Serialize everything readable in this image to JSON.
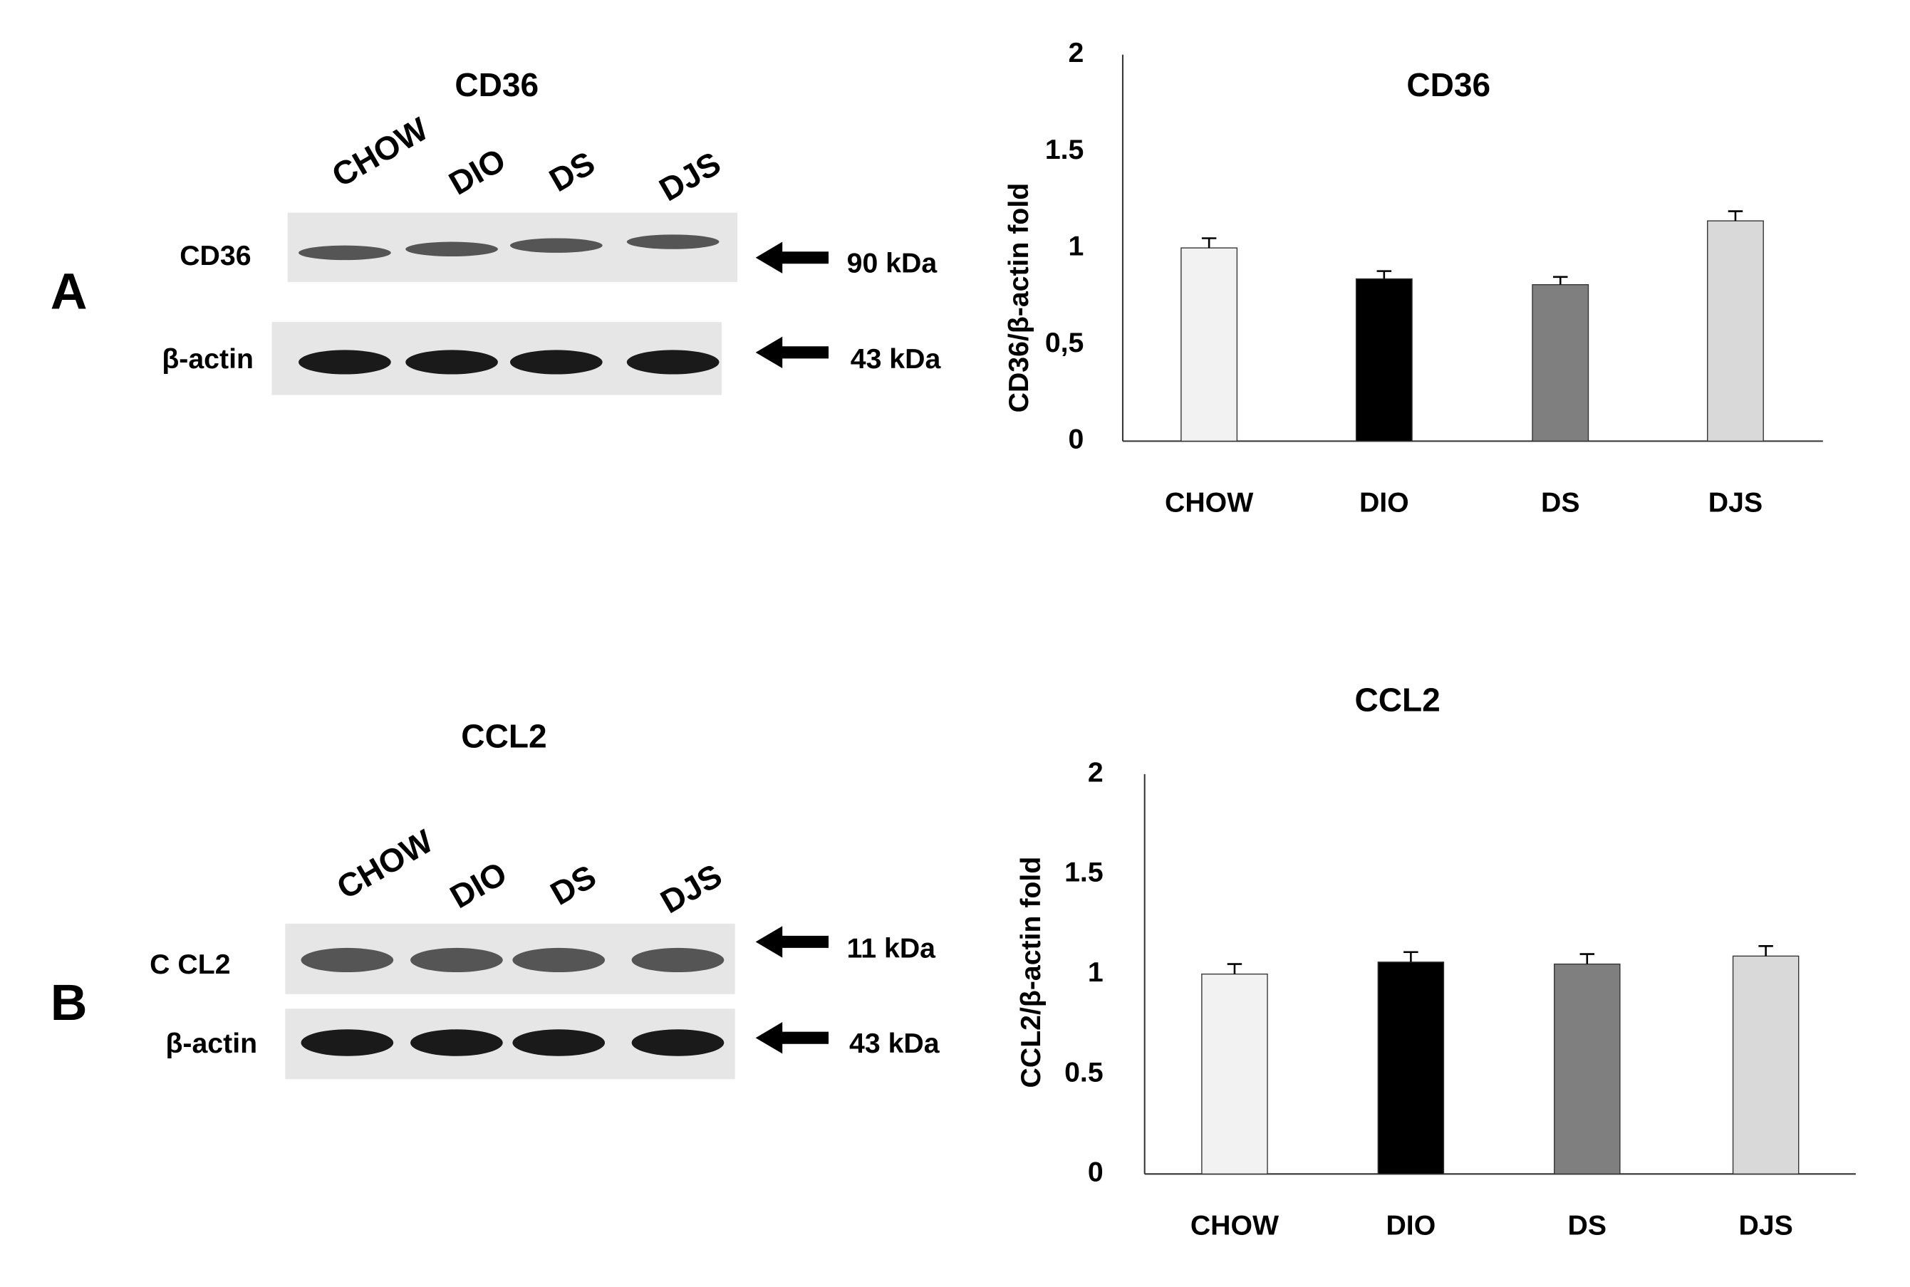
{
  "chart_data": [
    {
      "type": "bar",
      "title": "CD36",
      "y_label": "CD36/β-actin fold",
      "categories": [
        "CHOW",
        "DIO",
        "DS",
        "DJS"
      ],
      "values": [
        1.0,
        0.84,
        0.81,
        1.14
      ],
      "errors": [
        0.05,
        0.04,
        0.04,
        0.05
      ],
      "colors": [
        "#f2f2f2",
        "#000000",
        "#7f7f7f",
        "#d9d9d9"
      ],
      "ylim": [
        0,
        2
      ],
      "yticks": [
        0,
        {
          "value": 0.5,
          "label": "0,5"
        },
        1,
        1.5,
        2
      ]
    },
    {
      "type": "bar",
      "title": "CCL2",
      "y_label": "CCL2/β-actin fold",
      "categories": [
        "CHOW",
        "DIO",
        "DS",
        "DJS"
      ],
      "values": [
        1.0,
        1.06,
        1.05,
        1.09
      ],
      "errors": [
        0.05,
        0.05,
        0.05,
        0.05
      ],
      "colors": [
        "#f2f2f2",
        "#000000",
        "#7f7f7f",
        "#d9d9d9"
      ],
      "ylim": [
        0,
        2
      ],
      "yticks": [
        0,
        0.5,
        1,
        1.5,
        2
      ]
    }
  ],
  "blots": [
    {
      "panel": "A",
      "title": "CD36",
      "lanes": [
        "CHOW",
        "DIO",
        "DS",
        "DJS"
      ],
      "rows": [
        {
          "label": "CD36",
          "size": "90 kDa"
        },
        {
          "label": "β-actin",
          "size": "43 kDa"
        }
      ]
    },
    {
      "panel": "B",
      "title": "CCL2",
      "lanes": [
        "CHOW",
        "DIO",
        "DS",
        "DJS"
      ],
      "rows": [
        {
          "label": "C CL2",
          "size": "11 kDa"
        },
        {
          "label": "β-actin",
          "size": "43  kDa"
        }
      ]
    }
  ]
}
